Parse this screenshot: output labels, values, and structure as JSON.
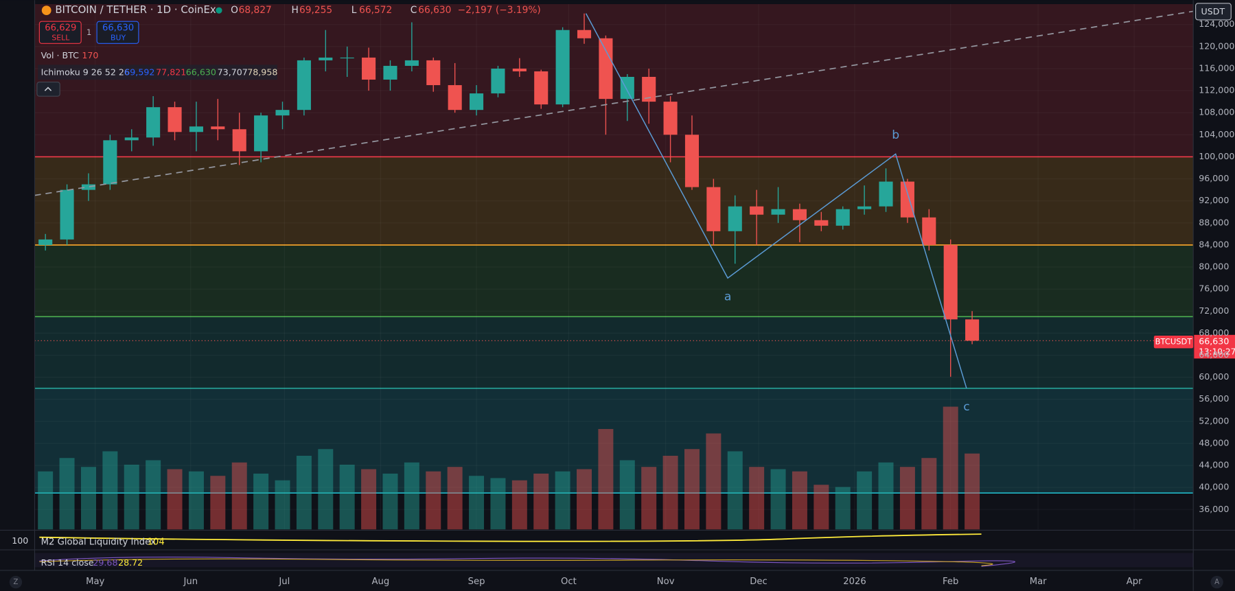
{
  "header": {
    "title": "BITCOIN / TETHER · 1D · CoinEx",
    "ohlc": [
      {
        "label": "O",
        "value": "68,827"
      },
      {
        "label": "H",
        "value": "69,255"
      },
      {
        "label": "L",
        "value": "66,572"
      },
      {
        "label": "C",
        "value": "66,630"
      }
    ],
    "change": "−2,197 (−3.19%)",
    "sell_price": "66,629",
    "sell": "SELL",
    "spread": "1",
    "buy_price": "66,630",
    "buy": "BUY",
    "volume_label": "Vol · BTC",
    "volume_value": "170",
    "ichimoku_label": "Ichimoku 9 26 52 26",
    "ichimoku_values": [
      "69,592",
      "77,821",
      "66,630",
      "73,707",
      "78,958"
    ],
    "currency": "USDT",
    "symbol_tag": "BTCUSDT",
    "axis_price": "66,630",
    "countdown": "13:10:27",
    "m2_label": "M2 Global Liquidity Index",
    "m2_value": "104",
    "m2_scale": "100",
    "rsi_label": "RSI 14 close",
    "rsi_values": [
      "29.68",
      "28.72"
    ],
    "left_button": "Z",
    "right_button": "A"
  },
  "chart_data": {
    "type": "candlestick",
    "categories": [
      null,
      null,
      null,
      null,
      null,
      null,
      null,
      null,
      null,
      null,
      null,
      null,
      null,
      null,
      null,
      null,
      null,
      null,
      null,
      null,
      null,
      null,
      null,
      null,
      null,
      null,
      null,
      null,
      null,
      null,
      null,
      null,
      null,
      null,
      null,
      null,
      null,
      null,
      null,
      null,
      null,
      null,
      null,
      null
    ],
    "open": [
      84000,
      85000,
      94000,
      95000,
      103000,
      103500,
      109000,
      104500,
      105500,
      105000,
      101000,
      107500,
      108500,
      117500,
      118000,
      118000,
      114000,
      116500,
      117500,
      113000,
      108500,
      111500,
      116000,
      115500,
      109500,
      123000,
      121500,
      110500,
      114500,
      110000,
      104000,
      94500,
      86500,
      91000,
      89500,
      90500,
      88500,
      87500,
      90500,
      91000,
      95500,
      89000,
      84000,
      70500
    ],
    "high": [
      86000,
      95000,
      97000,
      104000,
      105000,
      111000,
      110000,
      110000,
      110500,
      108000,
      108000,
      110000,
      118000,
      123000,
      120000,
      119800,
      117500,
      124400,
      118000,
      117000,
      113000,
      116500,
      117900,
      115800,
      123500,
      126000,
      122000,
      115000,
      116000,
      111000,
      107500,
      96000,
      93000,
      94000,
      94500,
      91500,
      90000,
      91000,
      94800,
      97900,
      96000,
      90500,
      85000,
      72000
    ],
    "low": [
      83000,
      84000,
      92000,
      94000,
      101000,
      102000,
      103000,
      101000,
      103000,
      98500,
      99000,
      105000,
      107500,
      115500,
      114500,
      112000,
      112000,
      115500,
      111800,
      108000,
      107500,
      110800,
      114500,
      108700,
      109000,
      120500,
      104000,
      106500,
      106000,
      99000,
      94000,
      84000,
      80600,
      84000,
      88000,
      84500,
      86500,
      86800,
      89500,
      90000,
      88000,
      83000,
      60100,
      66000
    ],
    "close": [
      85000,
      94000,
      95000,
      103000,
      103500,
      109000,
      104500,
      105500,
      105000,
      101000,
      107500,
      108500,
      117500,
      118000,
      118000,
      114000,
      116500,
      117500,
      113000,
      108500,
      111500,
      116000,
      115500,
      109500,
      123000,
      121500,
      110500,
      114500,
      110000,
      104000,
      94500,
      86500,
      91000,
      89500,
      90500,
      88500,
      87500,
      90500,
      91000,
      95500,
      89000,
      84000,
      70500,
      66630
    ],
    "volume": [
      2600,
      3200,
      2800,
      3500,
      2900,
      3100,
      2700,
      2600,
      2400,
      3000,
      2500,
      2200,
      3300,
      3600,
      2900,
      2700,
      2500,
      3000,
      2600,
      2800,
      2400,
      2300,
      2200,
      2500,
      2600,
      2700,
      4500,
      3100,
      2800,
      3300,
      3600,
      4300,
      3500,
      2800,
      2700,
      2600,
      2000,
      1900,
      2600,
      3000,
      2800,
      3200,
      5500,
      3400
    ],
    "volume_ylim": [
      0,
      6000
    ],
    "up_color": "#26a69a",
    "down_color": "#ef5350",
    "last_price": 66630,
    "xlim": [
      -0.5,
      53.26
    ],
    "xticks": [
      {
        "value": 2.31,
        "label": "May"
      },
      {
        "value": 6.74,
        "label": "Jun"
      },
      {
        "value": 11.09,
        "label": "Jul"
      },
      {
        "value": 15.55,
        "label": "Aug"
      },
      {
        "value": 20.0,
        "label": "Sep"
      },
      {
        "value": 24.28,
        "label": "Oct"
      },
      {
        "value": 28.78,
        "label": "Nov"
      },
      {
        "value": 33.09,
        "label": "Dec"
      },
      {
        "value": 37.55,
        "label": "2026"
      },
      {
        "value": 42.0,
        "label": "Feb"
      },
      {
        "value": 46.06,
        "label": "Mar"
      },
      {
        "value": 50.52,
        "label": "Apr"
      }
    ],
    "ylim": [
      32400,
      127700
    ],
    "yticks": [
      {
        "value": 36000,
        "label": "36,000"
      },
      {
        "value": 40000,
        "label": "40,000"
      },
      {
        "value": 44000,
        "label": "44,000"
      },
      {
        "value": 48000,
        "label": "48,000"
      },
      {
        "value": 52000,
        "label": "52,000"
      },
      {
        "value": 56000,
        "label": "56,000"
      },
      {
        "value": 60000,
        "label": "60,000"
      },
      {
        "value": 64000,
        "label": "64,000"
      },
      {
        "value": 68000,
        "label": "68,000"
      },
      {
        "value": 72000,
        "label": "72,000"
      },
      {
        "value": 76000,
        "label": "76,000"
      },
      {
        "value": 80000,
        "label": "80,000"
      },
      {
        "value": 84000,
        "label": "84,000"
      },
      {
        "value": 88000,
        "label": "88,000"
      },
      {
        "value": 92000,
        "label": "92,000"
      },
      {
        "value": 96000,
        "label": "96,000"
      },
      {
        "value": 100000,
        "label": "100,000"
      },
      {
        "value": 104000,
        "label": "104,000"
      },
      {
        "value": 108000,
        "label": "108,000"
      },
      {
        "value": 112000,
        "label": "112,000"
      },
      {
        "value": 116000,
        "label": "116,000"
      },
      {
        "value": 120000,
        "label": "120,000"
      },
      {
        "value": 124000,
        "label": "124,000"
      }
    ],
    "grid": true,
    "levels": [
      {
        "value": 39000,
        "color": "#22c5d6"
      },
      {
        "value": 58000,
        "color": "#26a69a"
      },
      {
        "value": 71000,
        "color": "#4caf50"
      },
      {
        "value": 84000,
        "color": "#ffa726"
      },
      {
        "value": 100000,
        "color": "#f23645"
      }
    ],
    "wave": {
      "x": [
        25.08,
        31.66,
        39.45,
        42.74
      ],
      "values": [
        126000,
        78000,
        100500,
        58000
      ],
      "labels": [
        null,
        "a",
        "b",
        "c"
      ],
      "color": "#5b9bd5"
    },
    "trendline": {
      "x": [
        -0.5,
        53.26
      ],
      "values": [
        93000,
        126400
      ],
      "color": "#9598a1"
    }
  }
}
